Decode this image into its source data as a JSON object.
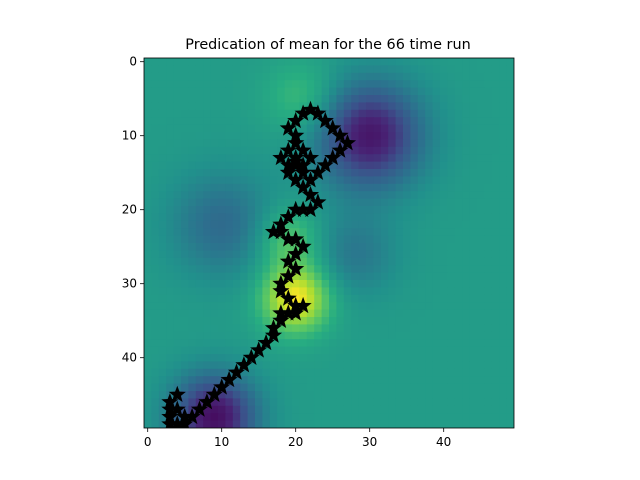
{
  "chart_data": {
    "type": "heatmap",
    "title": "Predication of mean for the 66 time run",
    "xlabel": "",
    "ylabel": "",
    "xlim": [
      -0.5,
      49.5
    ],
    "ylim": [
      49.5,
      -0.5
    ],
    "x_ticks": [
      "0",
      "10",
      "20",
      "30",
      "40"
    ],
    "y_ticks": [
      "0",
      "10",
      "20",
      "30",
      "40"
    ],
    "colormap": "viridis",
    "grid": false,
    "legend": "none",
    "field_features": [
      {
        "x": 20,
        "y": 32,
        "level": 1.0,
        "spread": 3.2,
        "label": "bright yellow ridge"
      },
      {
        "x": 19,
        "y": 24,
        "level": 0.75,
        "spread": 3.0,
        "label": "green-yellow ridge"
      },
      {
        "x": 21,
        "y": 5,
        "level": 0.7,
        "spread": 3.5,
        "label": "upper light green"
      },
      {
        "x": 30,
        "y": 10,
        "level": 0.08,
        "spread": 5.0,
        "label": "dark purple blob"
      },
      {
        "x": 9,
        "y": 48,
        "level": 0.05,
        "spread": 4.0,
        "label": "lower dark purple"
      },
      {
        "x": 10,
        "y": 22,
        "level": 0.35,
        "spread": 5.0,
        "label": "left teal"
      },
      {
        "x": 28,
        "y": 26,
        "level": 0.4,
        "spread": 4.0,
        "label": "right teal"
      }
    ],
    "background_level": 0.55,
    "series": [
      {
        "marker": "star",
        "color": "#000000",
        "points": [
          [
            3,
            49
          ],
          [
            3,
            48
          ],
          [
            3,
            47
          ],
          [
            3,
            46
          ],
          [
            4,
            45
          ],
          [
            4,
            47
          ],
          [
            5,
            48
          ],
          [
            4,
            49
          ],
          [
            5,
            49
          ],
          [
            6,
            48
          ],
          [
            7,
            47
          ],
          [
            8,
            46
          ],
          [
            9,
            45
          ],
          [
            10,
            44
          ],
          [
            11,
            43
          ],
          [
            12,
            42
          ],
          [
            13,
            41
          ],
          [
            14,
            40
          ],
          [
            15,
            39
          ],
          [
            16,
            38
          ],
          [
            17,
            37
          ],
          [
            17,
            36
          ],
          [
            18,
            35
          ],
          [
            18,
            34
          ],
          [
            19,
            34
          ],
          [
            20,
            34
          ],
          [
            21,
            33
          ],
          [
            20,
            33
          ],
          [
            19,
            32
          ],
          [
            18,
            31
          ],
          [
            18,
            30
          ],
          [
            19,
            29
          ],
          [
            20,
            28
          ],
          [
            19,
            27
          ],
          [
            20,
            26
          ],
          [
            21,
            25
          ],
          [
            20,
            24
          ],
          [
            19,
            24
          ],
          [
            18,
            23
          ],
          [
            17,
            23
          ],
          [
            18,
            22
          ],
          [
            19,
            21
          ],
          [
            20,
            20
          ],
          [
            21,
            20
          ],
          [
            22,
            20
          ],
          [
            23,
            19
          ],
          [
            22,
            18
          ],
          [
            21,
            17
          ],
          [
            20,
            16
          ],
          [
            19,
            15
          ],
          [
            20,
            14
          ],
          [
            21,
            14
          ],
          [
            20,
            13
          ],
          [
            19,
            12
          ],
          [
            18,
            13
          ],
          [
            19,
            14
          ],
          [
            21,
            15
          ],
          [
            22,
            16
          ],
          [
            23,
            15
          ],
          [
            24,
            14
          ],
          [
            25,
            13
          ],
          [
            26,
            12
          ],
          [
            27,
            11
          ],
          [
            26,
            10
          ],
          [
            25,
            9
          ],
          [
            24,
            8
          ],
          [
            23,
            7
          ],
          [
            22,
            6.5
          ],
          [
            21,
            7
          ],
          [
            20,
            8
          ],
          [
            19,
            9
          ],
          [
            20,
            10
          ],
          [
            20,
            11
          ],
          [
            21,
            12
          ],
          [
            22,
            13
          ],
          [
            20,
            13.5
          ]
        ]
      }
    ]
  }
}
